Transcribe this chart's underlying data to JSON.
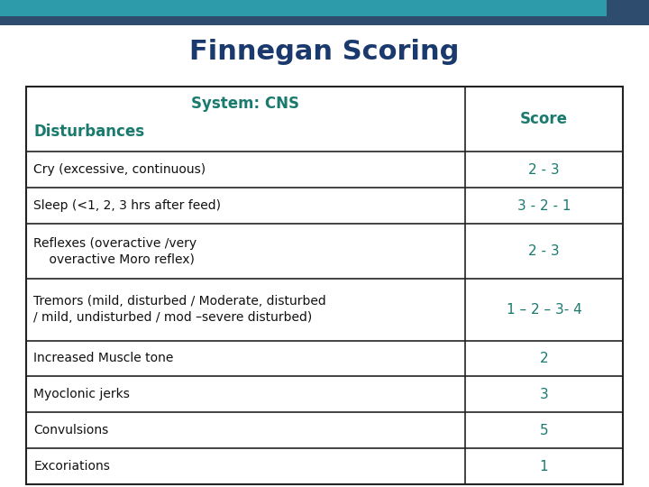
{
  "title": "Finnegan Scoring",
  "title_color": "#1a3a6e",
  "title_fontsize": 22,
  "header_color": "#1a7a6e",
  "header_fontsize": 12,
  "rows": [
    [
      "Cry (excessive, continuous)",
      "2 - 3"
    ],
    [
      "Sleep (<1, 2, 3 hrs after feed)",
      "3 - 2 - 1"
    ],
    [
      "Reflexes (overactive /very\n    overactive Moro reflex)",
      "2 - 3"
    ],
    [
      "Tremors (mild, disturbed / Moderate, disturbed\n/ mild, undisturbed / mod –severe disturbed)",
      "1 – 2 – 3- 4"
    ],
    [
      "Increased Muscle tone",
      "2"
    ],
    [
      "Myoclonic jerks",
      "3"
    ],
    [
      "Convulsions",
      "5"
    ],
    [
      "Excoriations",
      "1"
    ]
  ],
  "row_fontsize": 10,
  "score_fontsize": 11,
  "table_text_color": "#111111",
  "score_text_color": "#1a7a6e",
  "border_color": "#222222",
  "bg_color": "#ffffff",
  "header_bar_color1": "#2e9bab",
  "header_bar_color2": "#2e4d6e",
  "slide_bg": "#ffffff",
  "col_split": 0.735
}
